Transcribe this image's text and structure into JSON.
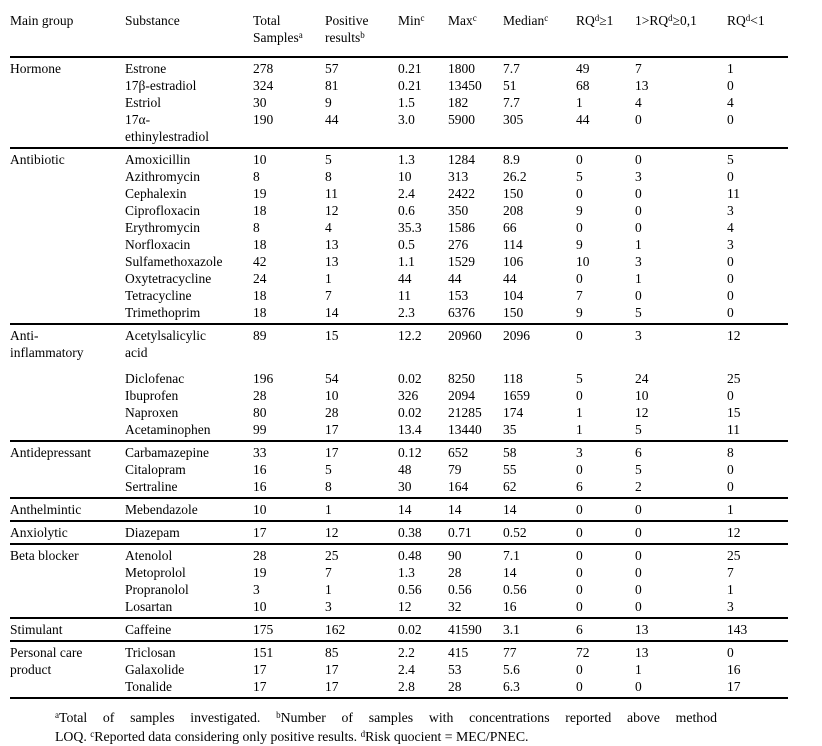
{
  "colors": {
    "text": "#000000",
    "background": "#ffffff",
    "rule": "#000000"
  },
  "table": {
    "columns": [
      {
        "parts": [
          {
            "t": "Main group"
          }
        ]
      },
      {
        "parts": [
          {
            "t": "Substance"
          }
        ]
      },
      {
        "parts": [
          {
            "t": "Total Samples"
          },
          {
            "sup": "a"
          }
        ]
      },
      {
        "parts": [
          {
            "t": "Positive results"
          },
          {
            "sup": "b"
          }
        ]
      },
      {
        "parts": [
          {
            "t": "Min"
          },
          {
            "sup": "c"
          }
        ]
      },
      {
        "parts": [
          {
            "t": "Max"
          },
          {
            "sup": "c"
          }
        ]
      },
      {
        "parts": [
          {
            "t": "Median"
          },
          {
            "sup": "c"
          }
        ]
      },
      {
        "parts": [
          {
            "t": "RQ"
          },
          {
            "sup": "d"
          },
          {
            "t": "≥1"
          }
        ]
      },
      {
        "parts": [
          {
            "t": "1>RQ"
          },
          {
            "sup": "d"
          },
          {
            "t": "≥0,1"
          }
        ]
      },
      {
        "parts": [
          {
            "t": "RQ"
          },
          {
            "sup": "d"
          },
          {
            "t": "<1"
          }
        ]
      }
    ],
    "groups": [
      {
        "name": "Hormone",
        "rows": [
          [
            "Estrone",
            "278",
            "57",
            "0.21",
            "1800",
            "7.7",
            "49",
            "7",
            "1"
          ],
          [
            "17β-estradiol",
            "324",
            "81",
            "0.21",
            "13450",
            "51",
            "68",
            "13",
            "0"
          ],
          [
            "Estriol",
            "30",
            "9",
            "1.5",
            "182",
            "7.7",
            "1",
            "4",
            "4"
          ],
          [
            "17α-\nethinylestradiol",
            "190",
            "44",
            "3.0",
            "5900",
            "305",
            "44",
            "0",
            "0"
          ]
        ]
      },
      {
        "name": "Antibiotic",
        "rows": [
          [
            "Amoxicillin",
            "10",
            "5",
            "1.3",
            "1284",
            "8.9",
            "0",
            "0",
            "5"
          ],
          [
            "Azithromycin",
            "8",
            "8",
            "10",
            "313",
            "26.2",
            "5",
            "3",
            "0"
          ],
          [
            "Cephalexin",
            "19",
            "11",
            "2.4",
            "2422",
            "150",
            "0",
            "0",
            "11"
          ],
          [
            "Ciprofloxacin",
            "18",
            "12",
            "0.6",
            "350",
            "208",
            "9",
            "0",
            "3"
          ],
          [
            "Erythromycin",
            "8",
            "4",
            "35.3",
            "1586",
            "66",
            "0",
            "0",
            "4"
          ],
          [
            "Norfloxacin",
            "18",
            "13",
            "0.5",
            "276",
            "114",
            "9",
            "1",
            "3"
          ],
          [
            "Sulfamethoxazole",
            "42",
            "13",
            "1.1",
            "1529",
            "106",
            "10",
            "3",
            "0"
          ],
          [
            "Oxytetracycline",
            "24",
            "1",
            "44",
            "44",
            "44",
            "0",
            "1",
            "0"
          ],
          [
            "Tetracycline",
            "18",
            "7",
            "11",
            "153",
            "104",
            "7",
            "0",
            "0"
          ],
          [
            "Trimethoprim",
            "18",
            "14",
            "2.3",
            "6376",
            "150",
            "9",
            "5",
            "0"
          ]
        ]
      },
      {
        "name": "Anti-\ninflammatory",
        "rows": [
          [
            "Acetylsalicylic\nacid",
            "89",
            "15",
            "12.2",
            "20960",
            "2096",
            "0",
            "3",
            "12"
          ],
          [
            "Diclofenac",
            "196",
            "54",
            "0.02",
            "8250",
            "118",
            "5",
            "24",
            "25"
          ],
          [
            "Ibuprofen",
            "28",
            "10",
            "326",
            "2094",
            "1659",
            "0",
            "10",
            "0"
          ],
          [
            "Naproxen",
            "80",
            "28",
            "0.02",
            "21285",
            "174",
            "1",
            "12",
            "15"
          ],
          [
            "Acetaminophen",
            "99",
            "17",
            "13.4",
            "13440",
            "35",
            "1",
            "5",
            "11"
          ]
        ]
      },
      {
        "name": "Antidepressant",
        "rows": [
          [
            "Carbamazepine",
            "33",
            "17",
            "0.12",
            "652",
            "58",
            "3",
            "6",
            "8"
          ],
          [
            "Citalopram",
            "16",
            "5",
            "48",
            "79",
            "55",
            "0",
            "5",
            "0"
          ],
          [
            "Sertraline",
            "16",
            "8",
            "30",
            "164",
            "62",
            "6",
            "2",
            "0"
          ]
        ]
      },
      {
        "name": "Anthelmintic",
        "rows": [
          [
            "Mebendazole",
            "10",
            "1",
            "14",
            "14",
            "14",
            "0",
            "0",
            "1"
          ]
        ]
      },
      {
        "name": "Anxiolytic",
        "rows": [
          [
            "Diazepam",
            "17",
            "12",
            "0.38",
            "0.71",
            "0.52",
            "0",
            "0",
            "12"
          ]
        ]
      },
      {
        "name": "Beta blocker",
        "rows": [
          [
            "Atenolol",
            "28",
            "25",
            "0.48",
            "90",
            "7.1",
            "0",
            "0",
            "25"
          ],
          [
            "Metoprolol",
            "19",
            "7",
            "1.3",
            "28",
            "14",
            "0",
            "0",
            "7"
          ],
          [
            "Propranolol",
            "3",
            "1",
            "0.56",
            "0.56",
            "0.56",
            "0",
            "0",
            "1"
          ],
          [
            "Losartan",
            "10",
            "3",
            "12",
            "32",
            "16",
            "0",
            "0",
            "3"
          ]
        ]
      },
      {
        "name": "Stimulant",
        "rows": [
          [
            "Caffeine",
            "175",
            "162",
            "0.02",
            "41590",
            "3.1",
            "6",
            "13",
            "143"
          ]
        ]
      },
      {
        "name": "Personal care\nproduct",
        "rows": [
          [
            "Triclosan",
            "151",
            "85",
            "2.2",
            "415",
            "77",
            "72",
            "13",
            "0"
          ],
          [
            "Galaxolide",
            "17",
            "17",
            "2.4",
            "53",
            "5.6",
            "0",
            "1",
            "16"
          ],
          [
            "Tonalide",
            "17",
            "17",
            "2.8",
            "28",
            "6.3",
            "0",
            "0",
            "17"
          ]
        ]
      }
    ]
  },
  "footnote": {
    "lines": [
      {
        "parts": [
          {
            "sup": "a"
          },
          {
            "t": "Total of samples investigated. "
          },
          {
            "sup": "b"
          },
          {
            "t": "Number of samples with concentrations reported above method"
          }
        ]
      },
      {
        "parts": [
          {
            "t": "LOQ. "
          },
          {
            "sup": "c"
          },
          {
            "t": "Reported data considering only positive results. "
          },
          {
            "sup": "d"
          },
          {
            "t": "Risk quocient = MEC/PNEC."
          }
        ]
      }
    ]
  }
}
